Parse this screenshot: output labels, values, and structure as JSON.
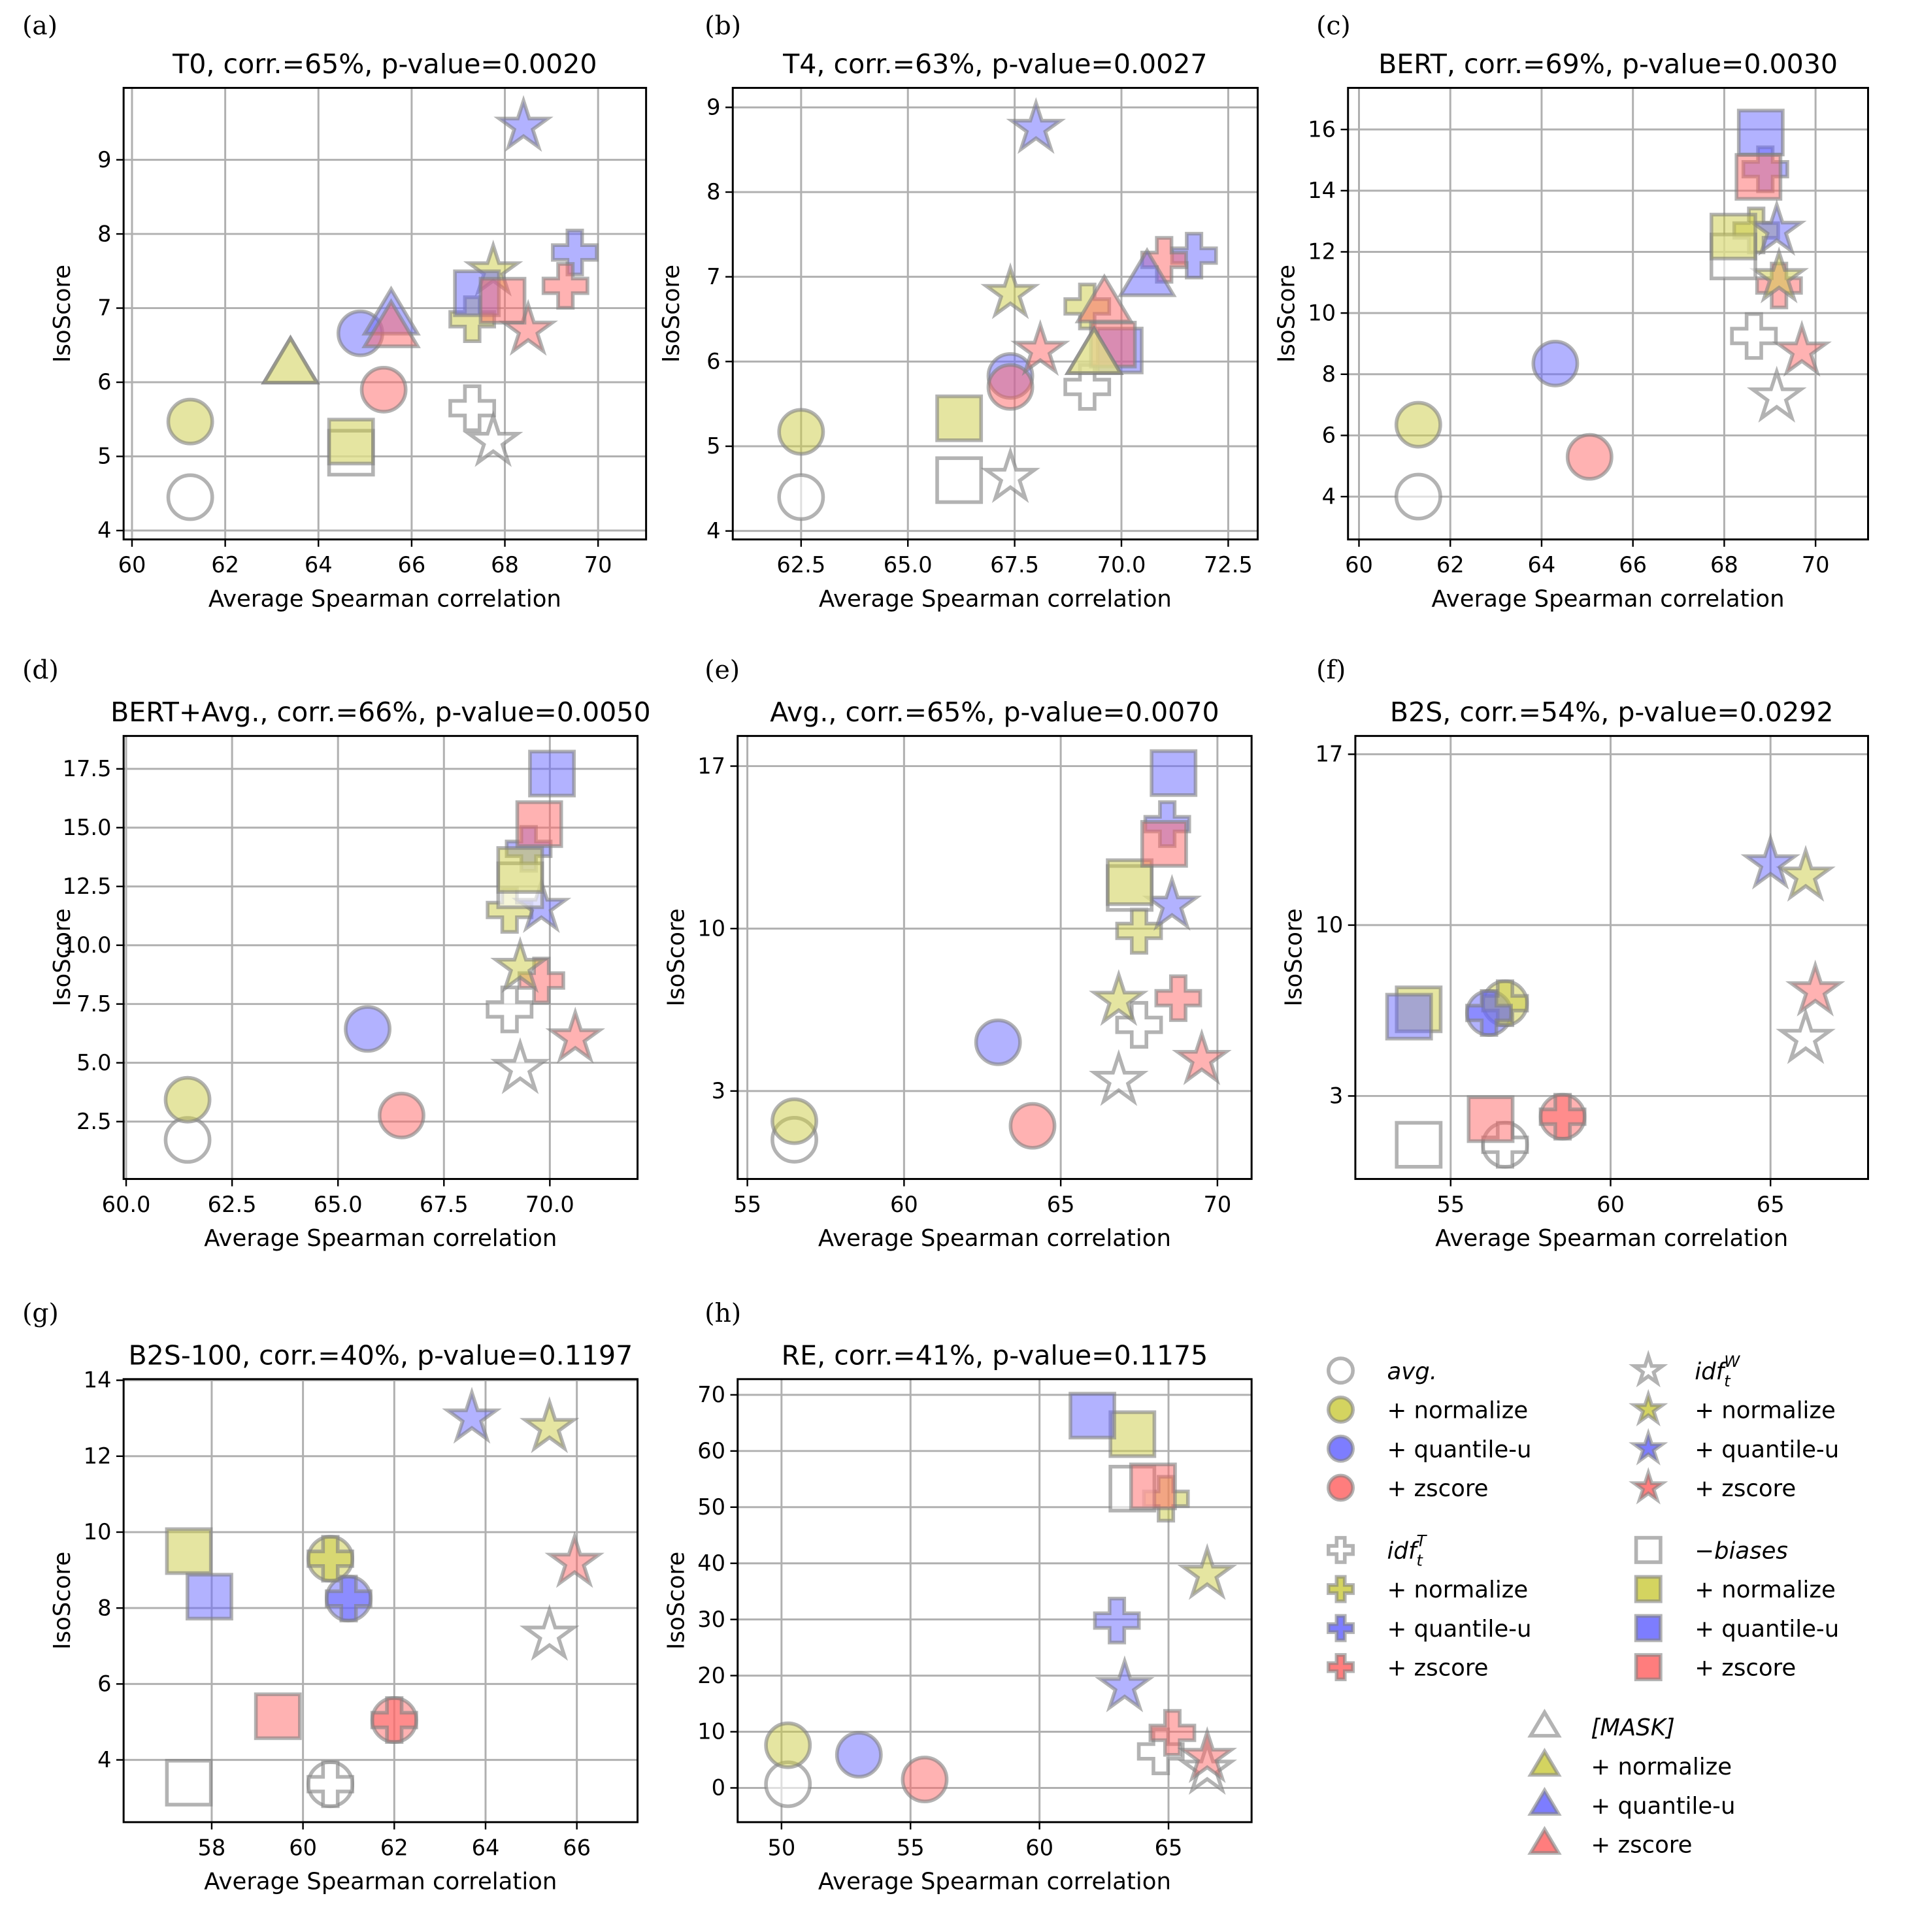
{
  "colors": {
    "base": "#ffffff",
    "normalize": "#cccc44",
    "quantile": "#6666ff",
    "zscore": "#ff6666",
    "edge": "#808080",
    "grid": "#b0b0b0"
  },
  "legend": {
    "methods": {
      "avg": {
        "label": "avg.",
        "marker": "circle"
      },
      "idfW": {
        "label": "idf",
        "sub": "t",
        "sup": "W",
        "marker": "star"
      },
      "idfT": {
        "label": "idf",
        "sub": "t",
        "sup": "T",
        "marker": "plus"
      },
      "biases": {
        "label": "−biases",
        "marker": "square"
      },
      "mask": {
        "label": "[MASK]",
        "marker": "triangle"
      }
    },
    "variants": {
      "normalize": "+ normalize",
      "quantile": "+ quantile-u",
      "zscore": "+ zscore"
    }
  },
  "chart_data": [
    {
      "type": "scatter",
      "panel": "(a)",
      "title": "T0,  corr.=65%, p-value=0.0020",
      "xlabel": "Average Spearman correlation",
      "ylabel": "IsoScore",
      "xlim": [
        59.82,
        71.03
      ],
      "ylim": [
        3.88,
        9.97
      ],
      "xticks": [
        "60",
        "62",
        "64",
        "66",
        "68",
        "70"
      ],
      "yticks": [
        "4",
        "5",
        "6",
        "7",
        "8",
        "9"
      ],
      "grid": true,
      "points": {
        "avg": {
          "base": [
            61.25,
            4.45
          ],
          "normalize": [
            61.25,
            5.47
          ],
          "quantile": [
            64.9,
            6.66
          ],
          "zscore": [
            65.4,
            5.9
          ]
        },
        "idfT": {
          "base": [
            67.3,
            5.65
          ],
          "normalize": [
            67.3,
            6.85
          ],
          "quantile": [
            69.5,
            7.75
          ],
          "zscore": [
            69.3,
            7.3
          ]
        },
        "idfW": {
          "base": [
            67.75,
            5.2
          ],
          "normalize": [
            67.75,
            7.5
          ],
          "quantile": [
            68.4,
            9.45
          ],
          "zscore": [
            68.5,
            6.7
          ]
        },
        "biases": {
          "base": [
            64.7,
            5.05
          ],
          "normalize": [
            64.7,
            5.2
          ],
          "quantile": [
            67.4,
            7.2
          ],
          "zscore": [
            67.95,
            7.1
          ]
        },
        "mask": {
          "base": [
            63.4,
            6.22
          ],
          "normalize": [
            63.4,
            6.22
          ],
          "quantile": [
            65.56,
            6.88
          ],
          "zscore": [
            65.56,
            6.71
          ]
        }
      }
    },
    {
      "type": "scatter",
      "panel": "(b)",
      "title": "T4,  corr.=63%, p-value=0.0027",
      "xlabel": "Average Spearman correlation",
      "ylabel": "IsoScore",
      "xlim": [
        60.9,
        73.19
      ],
      "ylim": [
        3.9,
        9.23
      ],
      "xticks": [
        "62.5",
        "65.0",
        "67.5",
        "70.0",
        "72.5"
      ],
      "yticks": [
        "4",
        "5",
        "6",
        "7",
        "8",
        "9"
      ],
      "grid": true,
      "points": {
        "avg": {
          "base": [
            62.5,
            4.4
          ],
          "normalize": [
            62.5,
            5.17
          ],
          "quantile": [
            67.4,
            5.83
          ],
          "zscore": [
            67.4,
            5.7
          ]
        },
        "idfT": {
          "base": [
            69.2,
            5.7
          ],
          "normalize": [
            69.2,
            6.65
          ],
          "quantile": [
            71.7,
            7.25
          ],
          "zscore": [
            71.0,
            7.2
          ]
        },
        "idfW": {
          "base": [
            67.4,
            4.63
          ],
          "normalize": [
            67.4,
            6.8
          ],
          "quantile": [
            68.0,
            8.75
          ],
          "zscore": [
            68.1,
            6.13
          ]
        },
        "biases": {
          "base": [
            66.2,
            4.6
          ],
          "normalize": [
            66.2,
            5.33
          ],
          "quantile": [
            69.96,
            6.13
          ],
          "zscore": [
            69.8,
            6.2
          ]
        },
        "mask": {
          "base": [
            69.36,
            6.06
          ],
          "normalize": [
            69.36,
            6.06
          ],
          "quantile": [
            70.6,
            6.98
          ],
          "zscore": [
            69.6,
            6.67
          ]
        }
      }
    },
    {
      "type": "scatter",
      "panel": "(c)",
      "title": "BERT,  corr.=69%, p-value=0.0030",
      "xlabel": "Average Spearman correlation",
      "ylabel": "IsoScore",
      "xlim": [
        59.76,
        71.15
      ],
      "ylim": [
        2.6,
        17.36
      ],
      "xticks": [
        "60",
        "62",
        "64",
        "66",
        "68",
        "70"
      ],
      "yticks": [
        "4",
        "6",
        "8",
        "10",
        "12",
        "14",
        "16"
      ],
      "grid": true,
      "points": {
        "avg": {
          "base": [
            61.3,
            4.0
          ],
          "normalize": [
            61.3,
            6.35
          ],
          "quantile": [
            64.3,
            8.35
          ],
          "zscore": [
            65.05,
            5.3
          ]
        },
        "idfT": {
          "base": [
            68.65,
            9.25
          ],
          "normalize": [
            68.7,
            12.7
          ],
          "quantile": [
            68.9,
            14.7
          ],
          "zscore": [
            69.2,
            10.9
          ]
        },
        "idfW": {
          "base": [
            69.15,
            7.25
          ],
          "normalize": [
            69.2,
            11.15
          ],
          "quantile": [
            69.15,
            12.7
          ],
          "zscore": [
            69.7,
            8.75
          ]
        },
        "biases": {
          "base": [
            68.2,
            11.85
          ],
          "normalize": [
            68.2,
            12.5
          ],
          "quantile": [
            68.8,
            15.9
          ],
          "zscore": [
            68.75,
            14.45
          ]
        }
      }
    },
    {
      "type": "scatter",
      "panel": "(d)",
      "title": "BERT+Avg.,  corr.=66%, p-value=0.0050",
      "xlabel": "Average Spearman correlation",
      "ylabel": "IsoScore",
      "xlim": [
        59.94,
        72.07
      ],
      "ylim": [
        0.06,
        18.9
      ],
      "xticks": [
        "60.0",
        "62.5",
        "65.0",
        "67.5",
        "70.0"
      ],
      "yticks": [
        "2.5",
        "5.0",
        "7.5",
        "10.0",
        "12.5",
        "15.0",
        "17.5"
      ],
      "grid": true,
      "points": {
        "avg": {
          "base": [
            61.45,
            1.72
          ],
          "normalize": [
            61.45,
            3.43
          ],
          "quantile": [
            65.7,
            6.44
          ],
          "zscore": [
            66.5,
            2.76
          ]
        },
        "idfT": {
          "base": [
            69.05,
            7.27
          ],
          "normalize": [
            69.05,
            11.5
          ],
          "quantile": [
            69.5,
            14.1
          ],
          "zscore": [
            69.8,
            8.5
          ]
        },
        "idfW": {
          "base": [
            69.3,
            4.75
          ],
          "normalize": [
            69.3,
            9.05
          ],
          "quantile": [
            69.8,
            11.6
          ],
          "zscore": [
            70.6,
            6.05
          ]
        },
        "biases": {
          "base": [
            69.3,
            12.55
          ],
          "normalize": [
            69.3,
            13.2
          ],
          "quantile": [
            70.05,
            17.3
          ],
          "zscore": [
            69.75,
            15.15
          ]
        }
      }
    },
    {
      "type": "scatter",
      "panel": "(e)",
      "title": "Avg.,  corr.=65%, p-value=0.0070",
      "xlabel": "Average Spearman correlation",
      "ylabel": "IsoScore",
      "xlim": [
        54.69,
        71.09
      ],
      "ylim": [
        -0.79,
        18.3
      ],
      "xticks": [
        "55",
        "60",
        "65",
        "70"
      ],
      "yticks": [
        "3",
        "10",
        "17"
      ],
      "grid": true,
      "points": {
        "avg": {
          "base": [
            56.5,
            0.9
          ],
          "normalize": [
            56.5,
            1.7
          ],
          "quantile": [
            63.0,
            5.1
          ],
          "zscore": [
            64.1,
            1.5
          ]
        },
        "idfT": {
          "base": [
            67.5,
            5.85
          ],
          "normalize": [
            67.5,
            9.9
          ],
          "quantile": [
            68.4,
            14.5
          ],
          "zscore": [
            68.75,
            7.0
          ]
        },
        "idfW": {
          "base": [
            66.85,
            3.45
          ],
          "normalize": [
            66.85,
            6.9
          ],
          "quantile": [
            68.55,
            11.0
          ],
          "zscore": [
            69.5,
            4.35
          ]
        },
        "biases": {
          "base": [
            67.2,
            11.75
          ],
          "normalize": [
            67.2,
            12.0
          ],
          "quantile": [
            68.6,
            16.7
          ],
          "zscore": [
            68.3,
            13.65
          ]
        }
      }
    },
    {
      "type": "scatter",
      "panel": "(f)",
      "title": "B2S,  corr.=54%, p-value=0.0292",
      "xlabel": "Average Spearman correlation",
      "ylabel": "IsoScore",
      "xlim": [
        52.02,
        68.05
      ],
      "ylim": [
        -0.4,
        17.75
      ],
      "xticks": [
        "55",
        "60",
        "65"
      ],
      "yticks": [
        "3",
        "10",
        "17"
      ],
      "grid": true,
      "points": {
        "avg": {
          "base": [
            56.7,
            1.0
          ],
          "normalize": [
            56.7,
            6.8
          ],
          "quantile": [
            56.2,
            6.4
          ],
          "zscore": [
            58.5,
            2.15
          ]
        },
        "idfT": {
          "base": [
            56.7,
            1.0
          ],
          "normalize": [
            56.7,
            6.8
          ],
          "quantile": [
            56.2,
            6.4
          ],
          "zscore": [
            58.5,
            2.15
          ]
        },
        "idfW": {
          "base": [
            66.1,
            5.35
          ],
          "normalize": [
            66.1,
            12.0
          ],
          "quantile": [
            65.0,
            12.5
          ],
          "zscore": [
            66.4,
            7.3
          ]
        },
        "biases": {
          "base": [
            54.0,
            1.0
          ],
          "normalize": [
            54.0,
            6.55
          ],
          "quantile": [
            53.7,
            6.25
          ],
          "zscore": [
            56.25,
            2.05
          ]
        }
      }
    },
    {
      "type": "scatter",
      "panel": "(g)",
      "title": "B2S-100,  corr.=40%, p-value=0.1197",
      "xlabel": "Average Spearman correlation",
      "ylabel": "IsoScore",
      "xlim": [
        56.07,
        67.33
      ],
      "ylim": [
        2.36,
        14.03
      ],
      "xticks": [
        "58",
        "60",
        "62",
        "64",
        "66"
      ],
      "yticks": [
        "4",
        "6",
        "8",
        "10",
        "12",
        "14"
      ],
      "grid": true,
      "points": {
        "avg": {
          "base": [
            60.6,
            3.36
          ],
          "normalize": [
            60.6,
            9.3
          ],
          "quantile": [
            61.0,
            8.25
          ],
          "zscore": [
            62.0,
            5.05
          ]
        },
        "idfT": {
          "base": [
            60.6,
            3.36
          ],
          "normalize": [
            60.6,
            9.3
          ],
          "quantile": [
            61.0,
            8.25
          ],
          "zscore": [
            62.0,
            5.05
          ]
        },
        "idfW": {
          "base": [
            65.4,
            7.28
          ],
          "normalize": [
            65.4,
            12.75
          ],
          "quantile": [
            63.7,
            13.0
          ],
          "zscore": [
            65.95,
            9.2
          ]
        },
        "biases": {
          "base": [
            57.5,
            3.4
          ],
          "normalize": [
            57.5,
            9.5
          ],
          "quantile": [
            57.95,
            8.3
          ],
          "zscore": [
            59.45,
            5.15
          ]
        }
      }
    },
    {
      "type": "scatter",
      "panel": "(h)",
      "title": "RE,  corr.=41%, p-value=0.1175",
      "xlabel": "Average Spearman correlation",
      "ylabel": "IsoScore",
      "xlim": [
        48.3,
        68.22
      ],
      "ylim": [
        -6.1,
        72.8
      ],
      "xticks": [
        "50",
        "55",
        "60",
        "65"
      ],
      "yticks": [
        "0",
        "10",
        "20",
        "30",
        "40",
        "50",
        "60",
        "70"
      ],
      "grid": true,
      "points": {
        "avg": {
          "base": [
            50.25,
            0.65
          ],
          "normalize": [
            50.25,
            7.6
          ],
          "quantile": [
            53.0,
            5.9
          ],
          "zscore": [
            55.55,
            1.5
          ]
        },
        "idfT": {
          "base": [
            64.7,
            6.5
          ],
          "normalize": [
            64.9,
            51.5
          ],
          "quantile": [
            63.0,
            29.8
          ],
          "zscore": [
            65.15,
            9.8
          ]
        },
        "idfW": {
          "base": [
            66.5,
            3.3
          ],
          "normalize": [
            66.5,
            38.0
          ],
          "quantile": [
            63.3,
            18.0
          ],
          "zscore": [
            66.5,
            5.4
          ]
        },
        "biases": {
          "base": [
            63.6,
            53.3
          ],
          "normalize": [
            63.6,
            63.0
          ],
          "quantile": [
            62.05,
            66.3
          ],
          "zscore": [
            64.4,
            53.7
          ]
        }
      }
    }
  ]
}
